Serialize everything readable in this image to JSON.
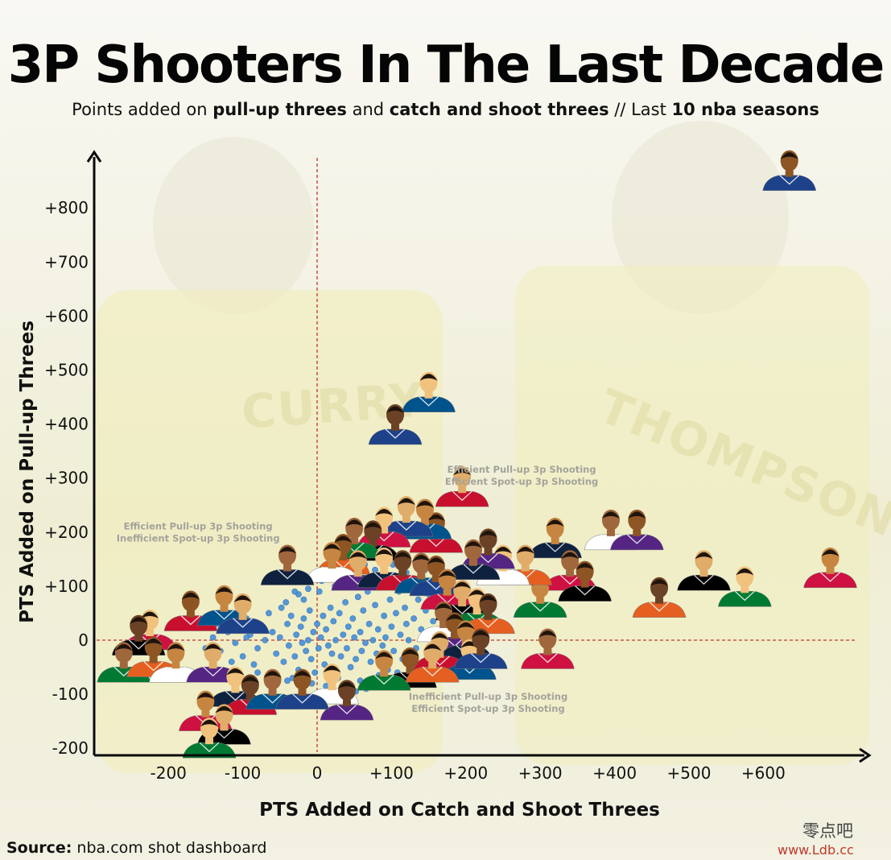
{
  "header": {
    "title": "3P Shooters In The Last Decade",
    "subtitle_pre": "Points added on ",
    "subtitle_b1": "pull-up threes",
    "subtitle_mid": " and ",
    "subtitle_b2": "catch and shoot threes",
    "subtitle_post": " // Last ",
    "subtitle_b3": "10 nba seasons"
  },
  "footer": {
    "source_label": "Source:",
    "source_text": " nba.com shot dashboard",
    "watermark_cn": "零点吧",
    "watermark_url": "www.Ldb.cc"
  },
  "background": {
    "jersey_left_name": "CURRY",
    "jersey_right_name": "THOMPSON"
  },
  "colors": {
    "dot": "#4a90d9",
    "dot_stroke": "#2f6fb5",
    "reference_line": "#c0392b",
    "axis": "#0b0b0b",
    "icon_jersey_colors": [
      "#1d428a",
      "#ce1141",
      "#000000",
      "#007a33",
      "#e56020",
      "#ffffff",
      "#552583",
      "#0e2240",
      "#c8102e",
      "#00538c"
    ]
  },
  "chart_data": {
    "type": "scatter",
    "title": "3P Shooters In The Last Decade",
    "xlabel": "PTS Added on Catch and Shoot Threes",
    "ylabel": "PTS Added on Pull-up Threes",
    "xlim": [
      -300,
      700
    ],
    "ylim": [
      -210,
      860
    ],
    "x_ticks": [
      -200,
      -100,
      0,
      100,
      200,
      300,
      400,
      500,
      600
    ],
    "x_tick_labels": [
      "-200",
      "-100",
      "0",
      "+100",
      "+200",
      "+300",
      "+400",
      "+500",
      "+600"
    ],
    "y_ticks": [
      -200,
      -100,
      0,
      100,
      200,
      300,
      400,
      500,
      600,
      700,
      800
    ],
    "y_tick_labels": [
      "-200",
      "-100",
      "0",
      "+100",
      "+200",
      "+300",
      "+400",
      "+500",
      "+600",
      "+700",
      "+800"
    ],
    "reference_lines": {
      "x": 0,
      "y": 0,
      "style": "dashed"
    },
    "quadrant_labels": [
      {
        "line1": "Efficient Pull-up 3p Shooting",
        "line2": "Efficient Spot-up 3p Shooting",
        "x": 275,
        "y": 310
      },
      {
        "line1": "Efficient Pull-up 3p Shooting",
        "line2": "Inefficient Spot-up 3p Shooting",
        "x": -160,
        "y": 205
      },
      {
        "line1": "Inefficient Pull-up 3p Shooting",
        "line2": "Efficient Spot-up 3p Shooting",
        "x": 230,
        "y": -110
      }
    ],
    "series": [
      {
        "marker": "player-headshot",
        "points": [
          [
            635,
            850
          ],
          [
            690,
            115
          ],
          [
            520,
            110
          ],
          [
            575,
            80
          ],
          [
            460,
            60
          ],
          [
            395,
            185
          ],
          [
            430,
            185
          ],
          [
            320,
            170
          ],
          [
            195,
            265
          ],
          [
            150,
            440
          ],
          [
            105,
            380
          ],
          [
            340,
            110
          ],
          [
            360,
            90
          ],
          [
            300,
            60
          ],
          [
            280,
            120
          ],
          [
            250,
            120
          ],
          [
            230,
            150
          ],
          [
            210,
            130
          ],
          [
            160,
            180
          ],
          [
            145,
            205
          ],
          [
            120,
            210
          ],
          [
            90,
            190
          ],
          [
            75,
            165
          ],
          [
            50,
            170
          ],
          [
            35,
            140
          ],
          [
            20,
            125
          ],
          [
            55,
            110
          ],
          [
            90,
            115
          ],
          [
            115,
            110
          ],
          [
            140,
            105
          ],
          [
            160,
            100
          ],
          [
            175,
            75
          ],
          [
            195,
            55
          ],
          [
            215,
            40
          ],
          [
            230,
            30
          ],
          [
            170,
            15
          ],
          [
            185,
            -5
          ],
          [
            200,
            -20
          ],
          [
            165,
            -40
          ],
          [
            205,
            -55
          ],
          [
            220,
            -35
          ],
          [
            310,
            -35
          ],
          [
            125,
            -70
          ],
          [
            90,
            -75
          ],
          [
            155,
            -60
          ],
          [
            20,
            -100
          ],
          [
            40,
            -130
          ],
          [
            -40,
            120
          ],
          [
            -170,
            35
          ],
          [
            -125,
            45
          ],
          [
            -100,
            30
          ],
          [
            -225,
            0
          ],
          [
            -240,
            -10
          ],
          [
            -260,
            -60
          ],
          [
            -220,
            -50
          ],
          [
            -190,
            -60
          ],
          [
            -140,
            -60
          ],
          [
            -110,
            -105
          ],
          [
            -90,
            -120
          ],
          [
            -60,
            -110
          ],
          [
            -20,
            -110
          ],
          [
            -150,
            -150
          ],
          [
            -125,
            -175
          ],
          [
            -145,
            -200
          ]
        ]
      },
      {
        "marker": "dot",
        "points": [
          [
            -90,
            10
          ],
          [
            -80,
            -15
          ],
          [
            -75,
            20
          ],
          [
            -70,
            0
          ],
          [
            -60,
            15
          ],
          [
            -55,
            -25
          ],
          [
            -50,
            5
          ],
          [
            -45,
            -40
          ],
          [
            -40,
            30
          ],
          [
            -38,
            -10
          ],
          [
            -35,
            45
          ],
          [
            -30,
            -30
          ],
          [
            -28,
            10
          ],
          [
            -25,
            -55
          ],
          [
            -22,
            25
          ],
          [
            -20,
            -5
          ],
          [
            -18,
            40
          ],
          [
            -15,
            -20
          ],
          [
            -12,
            0
          ],
          [
            -10,
            55
          ],
          [
            -8,
            -35
          ],
          [
            -5,
            15
          ],
          [
            -3,
            -60
          ],
          [
            0,
            30
          ],
          [
            2,
            -15
          ],
          [
            5,
            5
          ],
          [
            8,
            45
          ],
          [
            10,
            -45
          ],
          [
            12,
            20
          ],
          [
            15,
            -10
          ],
          [
            18,
            60
          ],
          [
            20,
            -25
          ],
          [
            22,
            35
          ],
          [
            25,
            0
          ],
          [
            28,
            -70
          ],
          [
            30,
            50
          ],
          [
            32,
            -30
          ],
          [
            35,
            10
          ],
          [
            38,
            70
          ],
          [
            40,
            -15
          ],
          [
            42,
            25
          ],
          [
            45,
            -50
          ],
          [
            48,
            40
          ],
          [
            50,
            5
          ],
          [
            52,
            -35
          ],
          [
            55,
            80
          ],
          [
            58,
            15
          ],
          [
            60,
            -20
          ],
          [
            62,
            55
          ],
          [
            65,
            -5
          ],
          [
            68,
            90
          ],
          [
            70,
            30
          ],
          [
            72,
            -40
          ],
          [
            75,
            0
          ],
          [
            78,
            65
          ],
          [
            80,
            -25
          ],
          [
            82,
            20
          ],
          [
            85,
            100
          ],
          [
            88,
            -10
          ],
          [
            90,
            45
          ],
          [
            92,
            5
          ],
          [
            95,
            -55
          ],
          [
            98,
            75
          ],
          [
            100,
            25
          ],
          [
            103,
            -20
          ],
          [
            106,
            50
          ],
          [
            110,
            90
          ],
          [
            112,
            10
          ],
          [
            115,
            -35
          ],
          [
            118,
            60
          ],
          [
            120,
            30
          ],
          [
            123,
            0
          ],
          [
            126,
            105
          ],
          [
            130,
            40
          ],
          [
            133,
            -15
          ],
          [
            136,
            75
          ],
          [
            140,
            20
          ],
          [
            143,
            -45
          ],
          [
            146,
            55
          ],
          [
            150,
            85
          ],
          [
            153,
            5
          ],
          [
            156,
            35
          ],
          [
            160,
            -25
          ],
          [
            163,
            65
          ],
          [
            166,
            15
          ],
          [
            170,
            45
          ],
          [
            173,
            -10
          ],
          [
            176,
            25
          ],
          [
            180,
            55
          ],
          [
            185,
            0
          ],
          [
            190,
            35
          ],
          [
            195,
            15
          ],
          [
            -110,
            -5
          ],
          [
            -105,
            25
          ],
          [
            -100,
            -30
          ],
          [
            -95,
            5
          ],
          [
            -120,
            15
          ],
          [
            -130,
            -20
          ],
          [
            -85,
            -45
          ],
          [
            -65,
            50
          ],
          [
            -48,
            60
          ],
          [
            -33,
            -70
          ],
          [
            -18,
            75
          ],
          [
            -7,
            -80
          ],
          [
            3,
            90
          ],
          [
            12,
            -85
          ],
          [
            24,
            100
          ],
          [
            36,
            -90
          ],
          [
            47,
            110
          ],
          [
            58,
            -75
          ],
          [
            70,
            115
          ],
          [
            83,
            -65
          ],
          [
            95,
            120
          ],
          [
            108,
            -60
          ],
          [
            120,
            125
          ],
          [
            133,
            -50
          ],
          [
            145,
            130
          ],
          [
            158,
            -40
          ],
          [
            170,
            120
          ],
          [
            182,
            -30
          ],
          [
            -60,
            -60
          ],
          [
            -40,
            -75
          ],
          [
            -25,
            85
          ],
          [
            -12,
            95
          ],
          [
            6,
            110
          ],
          [
            28,
            125
          ],
          [
            44,
            135
          ],
          [
            64,
            140
          ],
          [
            78,
            130
          ],
          [
            102,
            140
          ],
          [
            118,
            135
          ],
          [
            132,
            145
          ],
          [
            152,
            140
          ],
          [
            168,
            130
          ],
          [
            -140,
            5
          ],
          [
            -150,
            -15
          ],
          [
            -135,
            30
          ],
          [
            -115,
            -40
          ],
          [
            -95,
            40
          ],
          [
            -80,
            -60
          ],
          [
            -55,
            -80
          ],
          [
            -42,
            70
          ],
          [
            -30,
            90
          ],
          [
            16,
            -100
          ],
          [
            30,
            -95
          ],
          [
            52,
            -95
          ],
          [
            66,
            -90
          ],
          [
            88,
            -85
          ]
        ]
      }
    ]
  }
}
